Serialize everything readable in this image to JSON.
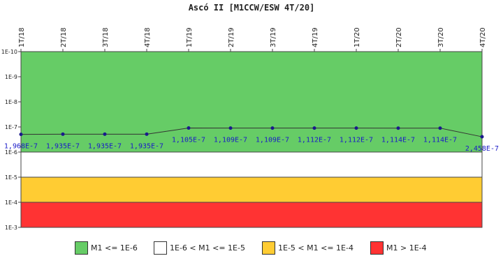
{
  "chart_data": {
    "type": "line",
    "title": "Ascó II [M1CCW/ESW 4T/20]",
    "categories": [
      "1T/18",
      "2T/18",
      "3T/18",
      "4T/18",
      "1T/19",
      "2T/19",
      "3T/19",
      "4T/19",
      "1T/20",
      "2T/20",
      "3T/20",
      "4T/20"
    ],
    "series": [
      {
        "values": [
          1.968e-07,
          1.935e-07,
          1.935e-07,
          1.935e-07,
          1.105e-07,
          1.109e-07,
          1.109e-07,
          1.112e-07,
          1.112e-07,
          1.114e-07,
          1.114e-07,
          2.458e-07
        ],
        "labels": [
          "1,968E-7",
          "1,935E-7",
          "1,935E-7",
          "1,935E-7",
          "1,105E-7",
          "1,109E-7",
          "1,109E-7",
          "1,112E-7",
          "1,112E-7",
          "1,114E-7",
          "1,114E-7",
          "2,458E-7"
        ],
        "color": "#1a1a8c"
      }
    ],
    "y_scale": "log",
    "y_inverted": true,
    "ylim": [
      1e-10,
      0.001
    ],
    "y_ticks": [
      {
        "value": 1e-10,
        "label": "1E-10"
      },
      {
        "value": 1e-09,
        "label": "1E-9"
      },
      {
        "value": 1e-08,
        "label": "1E-8"
      },
      {
        "value": 1e-07,
        "label": "1E-7"
      },
      {
        "value": 1e-06,
        "label": "1E-6"
      },
      {
        "value": 1e-05,
        "label": "1E-5"
      },
      {
        "value": 0.0001,
        "label": "1E-4"
      },
      {
        "value": 0.001,
        "label": "1E-3"
      }
    ],
    "bands": [
      {
        "from": 1e-10,
        "to": 1e-06,
        "color": "#66cc66",
        "label": "M1 <= 1E-6"
      },
      {
        "from": 1e-06,
        "to": 1e-05,
        "color": "#ffffff",
        "label": "1E-6 < M1 <= 1E-5"
      },
      {
        "from": 1e-05,
        "to": 0.0001,
        "color": "#ffcc33",
        "label": "1E-5 < M1 <= 1E-4"
      },
      {
        "from": 0.0001,
        "to": 0.001,
        "color": "#ff3333",
        "label": "M1 > 1E-4"
      }
    ],
    "legend_position": "bottom",
    "grid": false
  }
}
